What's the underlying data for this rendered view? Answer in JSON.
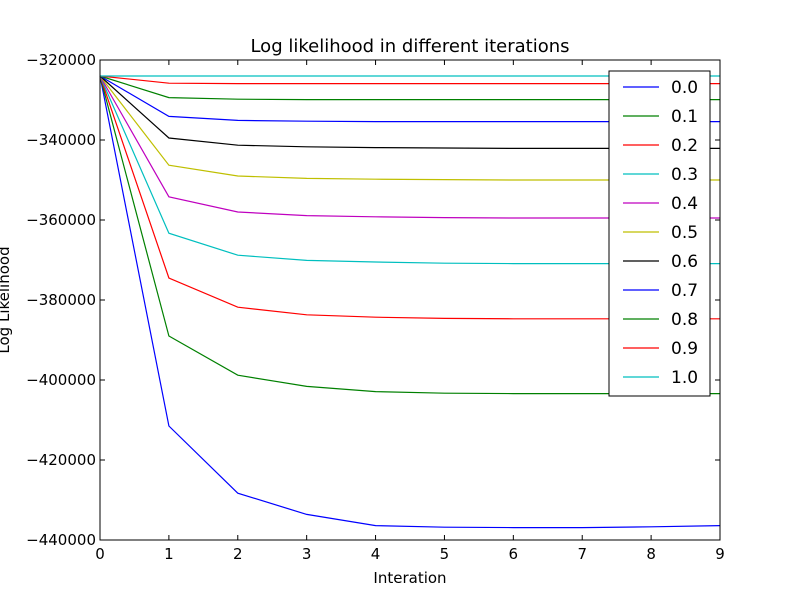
{
  "chart_data": {
    "type": "line",
    "title": "Log likelihood in different iterations",
    "xlabel": "Interation",
    "ylabel": "Log Likelihood",
    "xlim": [
      0,
      9
    ],
    "ylim": [
      -440000,
      -320000
    ],
    "xticks": [
      "0",
      "1",
      "2",
      "3",
      "4",
      "5",
      "6",
      "7",
      "8",
      "9"
    ],
    "yticks": [
      "−440000",
      "−420000",
      "−400000",
      "−380000",
      "−360000",
      "−340000",
      "−320000"
    ],
    "grid": false,
    "legend_position": "right",
    "x": [
      0,
      1,
      2,
      3,
      4,
      5,
      6,
      7,
      8,
      9
    ],
    "series": [
      {
        "name": "0.0",
        "color": "#0000ff",
        "values": [
          -324000,
          -411500,
          -428300,
          -433600,
          -436400,
          -436800,
          -436900,
          -436900,
          -436700,
          -436400
        ]
      },
      {
        "name": "0.1",
        "color": "#008000",
        "values": [
          -324000,
          -389000,
          -398800,
          -401600,
          -402900,
          -403300,
          -403400,
          -403400,
          -403400,
          -403400
        ]
      },
      {
        "name": "0.2",
        "color": "#ff0000",
        "values": [
          -324000,
          -374500,
          -381800,
          -383700,
          -384300,
          -384600,
          -384700,
          -384700,
          -384700,
          -384700
        ]
      },
      {
        "name": "0.3",
        "color": "#00bfbf",
        "values": [
          -324000,
          -363300,
          -368800,
          -370100,
          -370500,
          -370800,
          -370900,
          -370900,
          -370900,
          -370900
        ]
      },
      {
        "name": "0.4",
        "color": "#bf00bf",
        "values": [
          -324000,
          -354200,
          -358000,
          -358900,
          -359200,
          -359400,
          -359500,
          -359500,
          -359500,
          -359500
        ]
      },
      {
        "name": "0.5",
        "color": "#bfbf00",
        "values": [
          -324000,
          -346300,
          -349000,
          -349600,
          -349800,
          -349900,
          -350000,
          -350000,
          -350000,
          -350000
        ]
      },
      {
        "name": "0.6",
        "color": "#000000",
        "values": [
          -324000,
          -339500,
          -341300,
          -341700,
          -341900,
          -342000,
          -342100,
          -342100,
          -342100,
          -342100
        ]
      },
      {
        "name": "0.7",
        "color": "#0000ff",
        "values": [
          -324000,
          -334100,
          -335100,
          -335300,
          -335400,
          -335400,
          -335400,
          -335400,
          -335400,
          -335400
        ]
      },
      {
        "name": "0.8",
        "color": "#008000",
        "values": [
          -324000,
          -329400,
          -329800,
          -329900,
          -329900,
          -329900,
          -329900,
          -329900,
          -329900,
          -329900
        ]
      },
      {
        "name": "0.9",
        "color": "#ff0000",
        "values": [
          -324000,
          -325800,
          -325900,
          -325900,
          -325900,
          -325900,
          -325900,
          -325900,
          -325900,
          -325900
        ]
      },
      {
        "name": "1.0",
        "color": "#00bfbf",
        "values": [
          -324000,
          -324000,
          -324000,
          -324000,
          -324000,
          -324000,
          -324000,
          -324000,
          -324000,
          -324000
        ]
      }
    ]
  }
}
